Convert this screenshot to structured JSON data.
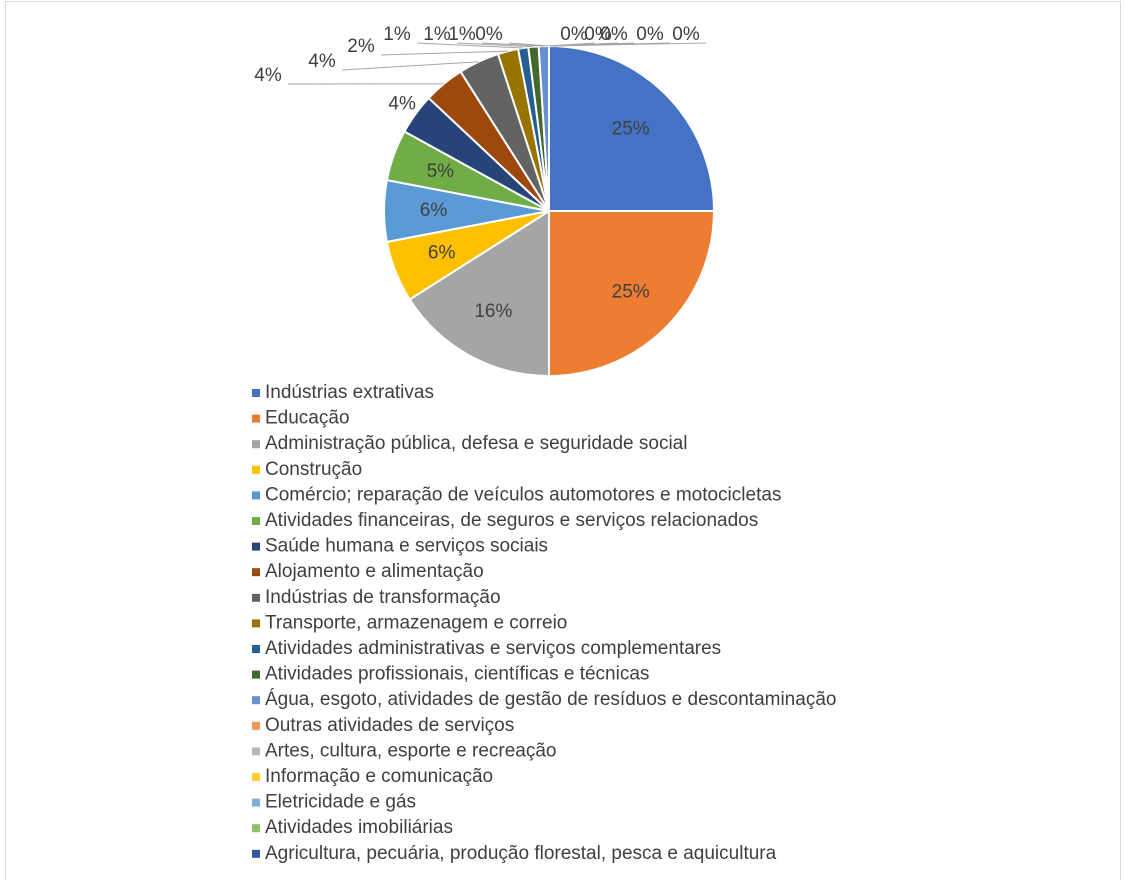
{
  "chart_data": {
    "type": "pie",
    "categories": [
      "Indústrias extrativas",
      "Educação",
      "Administração pública, defesa e seguridade social",
      "Construção",
      "Comércio; reparação de veículos automotores e motocicletas",
      "Atividades financeiras, de seguros e serviços relacionados",
      "Saúde humana e serviços sociais",
      "Alojamento e alimentação",
      "Indústrias de transformação",
      "Transporte, armazenagem e correio",
      "Atividades administrativas e serviços complementares",
      "Atividades profissionais, científicas e técnicas",
      "Água, esgoto, atividades de gestão de resíduos e descontaminação",
      "Outras atividades de serviços",
      "Artes, cultura, esporte e recreação",
      "Informação e comunicação",
      "Eletricidade e gás",
      "Atividades imobiliárias",
      "Agricultura, pecuária, produção florestal, pesca e aquicultura"
    ],
    "values": [
      25,
      25,
      16,
      6,
      6,
      5,
      4,
      4,
      4,
      2,
      1,
      1,
      1,
      0,
      0,
      0,
      0,
      0,
      0
    ],
    "value_labels": [
      "25%",
      "25%",
      "16%",
      "6%",
      "6%",
      "5%",
      "4%",
      "4%",
      "4%",
      "2%",
      "1%",
      "1%",
      "1%",
      "0%",
      "0%",
      "0%",
      "0%",
      "0%",
      "0%"
    ],
    "colors": [
      "#4472C4",
      "#ED7D31",
      "#A5A5A5",
      "#FFC000",
      "#5B9BD5",
      "#70AD47",
      "#264478",
      "#9E480E",
      "#636363",
      "#997300",
      "#255E91",
      "#43682B",
      "#698ED0",
      "#F1975A",
      "#B7B7B7",
      "#FFCD33",
      "#7CAFDD",
      "#8CC168",
      "#335AA1"
    ],
    "legend": "bottom"
  }
}
